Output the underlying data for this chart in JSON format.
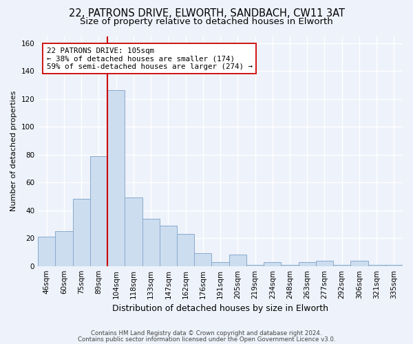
{
  "title1": "22, PATRONS DRIVE, ELWORTH, SANDBACH, CW11 3AT",
  "title2": "Size of property relative to detached houses in Elworth",
  "xlabel": "Distribution of detached houses by size in Elworth",
  "ylabel": "Number of detached properties",
  "bar_labels": [
    "46sqm",
    "60sqm",
    "75sqm",
    "89sqm",
    "104sqm",
    "118sqm",
    "133sqm",
    "147sqm",
    "162sqm",
    "176sqm",
    "191sqm",
    "205sqm",
    "219sqm",
    "234sqm",
    "248sqm",
    "263sqm",
    "277sqm",
    "292sqm",
    "306sqm",
    "321sqm",
    "335sqm"
  ],
  "bar_values": [
    21,
    25,
    48,
    79,
    126,
    49,
    34,
    29,
    23,
    9,
    3,
    8,
    1,
    3,
    1,
    3,
    4,
    1,
    4,
    1,
    1
  ],
  "bar_color": "#ccddf0",
  "bar_edge_color": "#88aacc",
  "vline_color": "#cc0000",
  "annotation_text": "22 PATRONS DRIVE: 105sqm\n← 38% of detached houses are smaller (174)\n59% of semi-detached houses are larger (274) →",
  "annotation_box_edge": "#cc0000",
  "ylim": [
    0,
    165
  ],
  "yticks": [
    0,
    20,
    40,
    60,
    80,
    100,
    120,
    140,
    160
  ],
  "footer1": "Contains HM Land Registry data © Crown copyright and database right 2024.",
  "footer2": "Contains public sector information licensed under the Open Government Licence v3.0.",
  "bg_color": "#eef2fa",
  "grid_color": "#ffffff",
  "title1_fontsize": 10.5,
  "title2_fontsize": 9.5,
  "xlabel_fontsize": 9,
  "ylabel_fontsize": 8,
  "tick_fontsize": 7.5,
  "annot_fontsize": 7.8,
  "footer_fontsize": 6.2
}
